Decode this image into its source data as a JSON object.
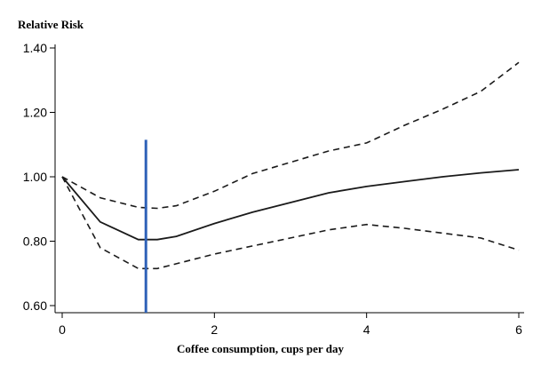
{
  "chart_data": {
    "type": "line",
    "ylabel": "Relative Risk",
    "xlabel": "Coffee consumption, cups per day",
    "xlim": [
      0,
      6
    ],
    "ylim": [
      0.6,
      1.4
    ],
    "xticks": [
      {
        "value": 0,
        "label": "0"
      },
      {
        "value": 2,
        "label": "2"
      },
      {
        "value": 4,
        "label": "4"
      },
      {
        "value": 6,
        "label": "6"
      }
    ],
    "yticks": [
      {
        "value": 0.6,
        "label": "0.60"
      },
      {
        "value": 0.8,
        "label": "0.80"
      },
      {
        "value": 1.0,
        "label": "1.00"
      },
      {
        "value": 1.2,
        "label": "1.20"
      },
      {
        "value": 1.4,
        "label": "1.40"
      }
    ],
    "grid": false,
    "series": [
      {
        "style": "solid",
        "color": "#1a1a1a",
        "x": [
          0,
          0.5,
          1.0,
          1.25,
          1.5,
          2.0,
          2.5,
          3.0,
          3.5,
          4.0,
          4.5,
          5.0,
          5.5,
          6.0
        ],
        "y": [
          1.0,
          0.86,
          0.805,
          0.805,
          0.815,
          0.855,
          0.89,
          0.92,
          0.95,
          0.97,
          0.985,
          1.0,
          1.012,
          1.022
        ]
      },
      {
        "style": "dashed",
        "color": "#1a1a1a",
        "x": [
          0,
          0.5,
          1.0,
          1.25,
          1.5,
          2.0,
          2.5,
          3.0,
          3.5,
          4.0,
          4.5,
          5.0,
          5.5,
          6.0
        ],
        "y": [
          1.0,
          0.935,
          0.905,
          0.902,
          0.91,
          0.955,
          1.01,
          1.045,
          1.08,
          1.105,
          1.16,
          1.21,
          1.265,
          1.355
        ]
      },
      {
        "style": "dashed",
        "color": "#1a1a1a",
        "x": [
          0,
          0.5,
          1.0,
          1.25,
          1.5,
          2.0,
          2.5,
          3.0,
          3.5,
          4.0,
          4.5,
          5.0,
          5.5,
          6.0
        ],
        "y": [
          1.0,
          0.78,
          0.715,
          0.715,
          0.73,
          0.76,
          0.785,
          0.81,
          0.835,
          0.852,
          0.84,
          0.825,
          0.81,
          0.772
        ]
      }
    ],
    "vertical_marker": {
      "x": 1.1,
      "y_from": 0.6,
      "y_to": 1.115,
      "color": "#2f62b8"
    }
  }
}
